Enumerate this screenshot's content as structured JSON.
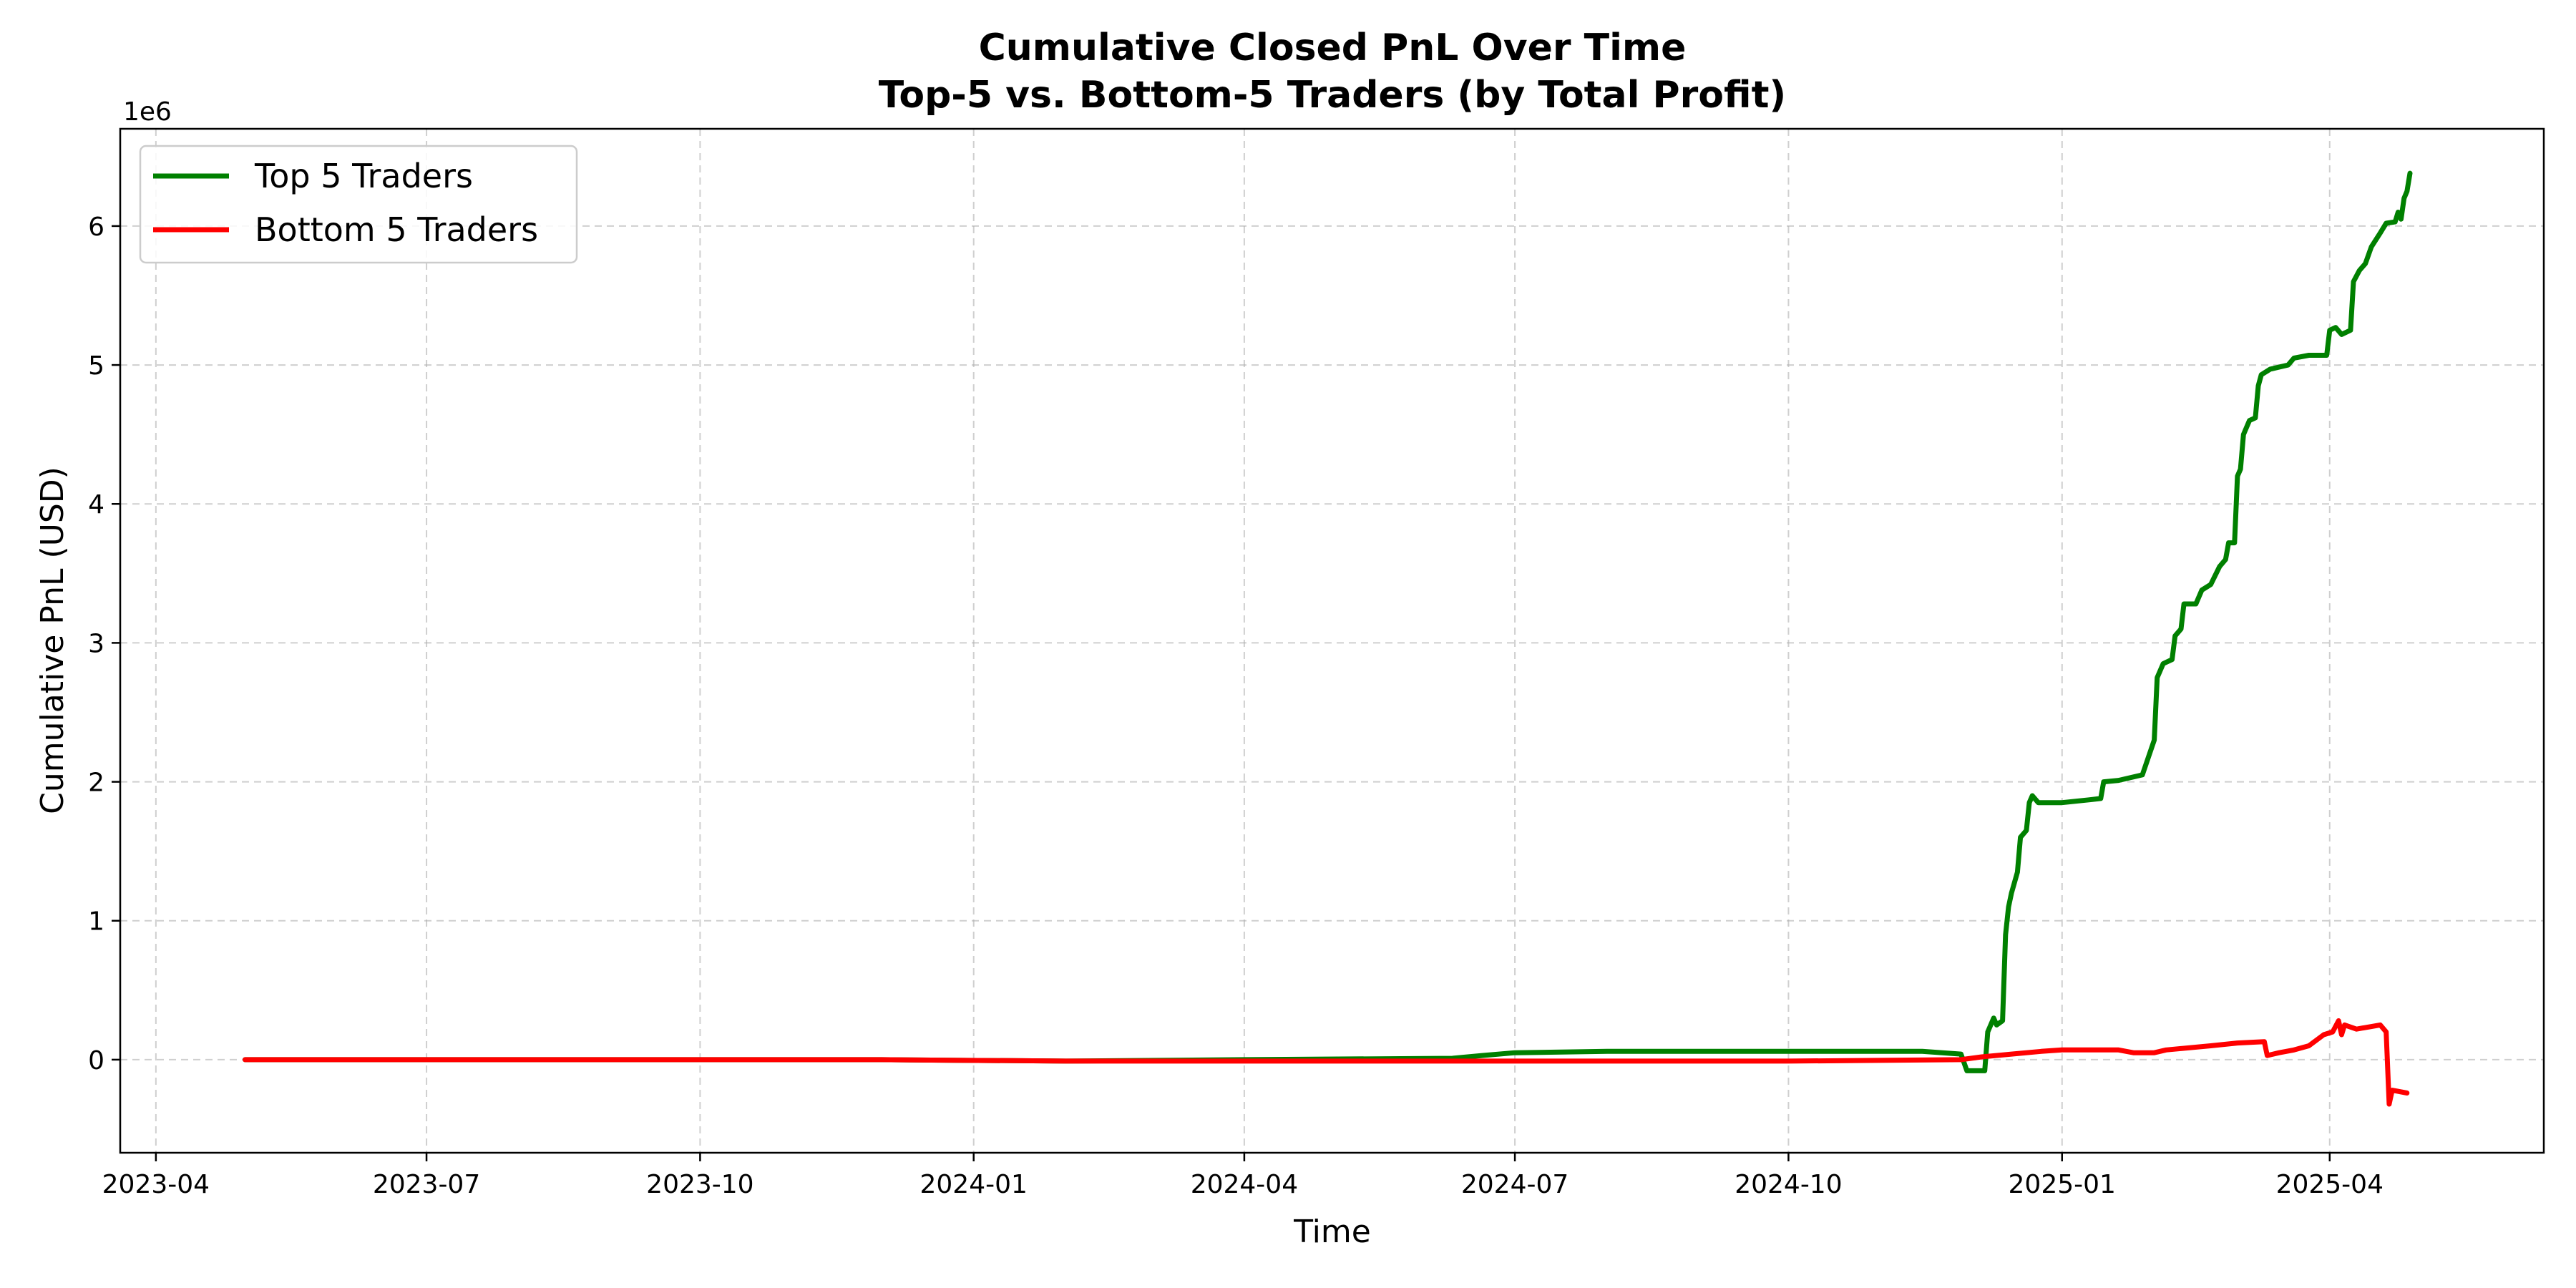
{
  "chart_data": {
    "type": "line",
    "title": "Cumulative Closed PnL Over Time",
    "subtitle": "Top-5 vs. Bottom-5 Traders (by Total Profit)",
    "xlabel": "Time",
    "ylabel": "Cumulative PnL (USD)",
    "y_scale_label": "1e6",
    "xlim": [
      "2023-03-20",
      "2025-06-12"
    ],
    "ylim": [
      -0.67,
      6.7
    ],
    "x_ticks": [
      "2023-04",
      "2023-07",
      "2023-10",
      "2024-01",
      "2024-04",
      "2024-07",
      "2024-10",
      "2025-01",
      "2025-04"
    ],
    "x_tick_dates": [
      "2023-04-01",
      "2023-07-01",
      "2023-10-01",
      "2024-01-01",
      "2024-04-01",
      "2024-07-01",
      "2024-10-01",
      "2025-01-01",
      "2025-04-01"
    ],
    "y_ticks": [
      0,
      1,
      2,
      3,
      4,
      5,
      6
    ],
    "grid": true,
    "legend_position": "top-left",
    "series": [
      {
        "name": "Top 5 Traders",
        "color": "#008000",
        "points": [
          [
            "2023-05-01",
            0
          ],
          [
            "2023-12-01",
            0
          ],
          [
            "2024-02-01",
            -0.01
          ],
          [
            "2024-04-01",
            0
          ],
          [
            "2024-06-10",
            0.01
          ],
          [
            "2024-06-20",
            0.03
          ],
          [
            "2024-07-01",
            0.05
          ],
          [
            "2024-08-01",
            0.06
          ],
          [
            "2024-09-01",
            0.06
          ],
          [
            "2024-10-01",
            0.06
          ],
          [
            "2024-11-15",
            0.06
          ],
          [
            "2024-11-28",
            0.04
          ],
          [
            "2024-11-30",
            -0.08
          ],
          [
            "2024-12-06",
            -0.08
          ],
          [
            "2024-12-07",
            0.2
          ],
          [
            "2024-12-09",
            0.3
          ],
          [
            "2024-12-10",
            0.25
          ],
          [
            "2024-12-12",
            0.28
          ],
          [
            "2024-12-13",
            0.9
          ],
          [
            "2024-12-14",
            1.1
          ],
          [
            "2024-12-15",
            1.2
          ],
          [
            "2024-12-17",
            1.35
          ],
          [
            "2024-12-18",
            1.6
          ],
          [
            "2024-12-20",
            1.65
          ],
          [
            "2024-12-21",
            1.85
          ],
          [
            "2024-12-22",
            1.9
          ],
          [
            "2024-12-24",
            1.85
          ],
          [
            "2025-01-01",
            1.85
          ],
          [
            "2025-01-10",
            1.87
          ],
          [
            "2025-01-14",
            1.88
          ],
          [
            "2025-01-15",
            2.0
          ],
          [
            "2025-01-20",
            2.01
          ],
          [
            "2025-01-28",
            2.05
          ],
          [
            "2025-02-01",
            2.3
          ],
          [
            "2025-02-02",
            2.75
          ],
          [
            "2025-02-04",
            2.85
          ],
          [
            "2025-02-07",
            2.88
          ],
          [
            "2025-02-08",
            3.05
          ],
          [
            "2025-02-10",
            3.1
          ],
          [
            "2025-02-11",
            3.28
          ],
          [
            "2025-02-15",
            3.28
          ],
          [
            "2025-02-17",
            3.38
          ],
          [
            "2025-02-20",
            3.42
          ],
          [
            "2025-02-23",
            3.55
          ],
          [
            "2025-02-25",
            3.6
          ],
          [
            "2025-02-26",
            3.72
          ],
          [
            "2025-02-28",
            3.72
          ],
          [
            "2025-03-01",
            4.2
          ],
          [
            "2025-03-02",
            4.25
          ],
          [
            "2025-03-03",
            4.5
          ],
          [
            "2025-03-05",
            4.6
          ],
          [
            "2025-03-07",
            4.62
          ],
          [
            "2025-03-08",
            4.85
          ],
          [
            "2025-03-09",
            4.93
          ],
          [
            "2025-03-12",
            4.97
          ],
          [
            "2025-03-18",
            5.0
          ],
          [
            "2025-03-20",
            5.05
          ],
          [
            "2025-03-25",
            5.07
          ],
          [
            "2025-03-31",
            5.07
          ],
          [
            "2025-04-01",
            5.25
          ],
          [
            "2025-04-03",
            5.27
          ],
          [
            "2025-04-05",
            5.22
          ],
          [
            "2025-04-08",
            5.25
          ],
          [
            "2025-04-09",
            5.6
          ],
          [
            "2025-04-11",
            5.68
          ],
          [
            "2025-04-13",
            5.73
          ],
          [
            "2025-04-15",
            5.85
          ],
          [
            "2025-04-18",
            5.95
          ],
          [
            "2025-04-20",
            6.02
          ],
          [
            "2025-04-23",
            6.03
          ],
          [
            "2025-04-24",
            6.1
          ],
          [
            "2025-04-25",
            6.05
          ],
          [
            "2025-04-26",
            6.2
          ],
          [
            "2025-04-27",
            6.25
          ],
          [
            "2025-04-28",
            6.38
          ]
        ]
      },
      {
        "name": "Bottom 5 Traders",
        "color": "#ff0000",
        "points": [
          [
            "2023-05-01",
            0
          ],
          [
            "2023-12-01",
            0
          ],
          [
            "2024-02-01",
            -0.01
          ],
          [
            "2024-04-01",
            -0.01
          ],
          [
            "2024-07-01",
            -0.01
          ],
          [
            "2024-10-01",
            -0.01
          ],
          [
            "2024-11-28",
            0
          ],
          [
            "2024-12-05",
            0.02
          ],
          [
            "2024-12-15",
            0.04
          ],
          [
            "2024-12-25",
            0.06
          ],
          [
            "2025-01-01",
            0.07
          ],
          [
            "2025-01-10",
            0.07
          ],
          [
            "2025-01-20",
            0.07
          ],
          [
            "2025-01-25",
            0.05
          ],
          [
            "2025-02-01",
            0.05
          ],
          [
            "2025-02-05",
            0.07
          ],
          [
            "2025-02-20",
            0.1
          ],
          [
            "2025-03-01",
            0.12
          ],
          [
            "2025-03-10",
            0.13
          ],
          [
            "2025-03-11",
            0.03
          ],
          [
            "2025-03-15",
            0.05
          ],
          [
            "2025-03-20",
            0.07
          ],
          [
            "2025-03-25",
            0.1
          ],
          [
            "2025-03-30",
            0.18
          ],
          [
            "2025-04-02",
            0.2
          ],
          [
            "2025-04-04",
            0.28
          ],
          [
            "2025-04-05",
            0.18
          ],
          [
            "2025-04-06",
            0.25
          ],
          [
            "2025-04-10",
            0.22
          ],
          [
            "2025-04-18",
            0.25
          ],
          [
            "2025-04-20",
            0.2
          ],
          [
            "2025-04-21",
            -0.32
          ],
          [
            "2025-04-22",
            -0.22
          ],
          [
            "2025-04-27",
            -0.24
          ]
        ]
      }
    ]
  }
}
